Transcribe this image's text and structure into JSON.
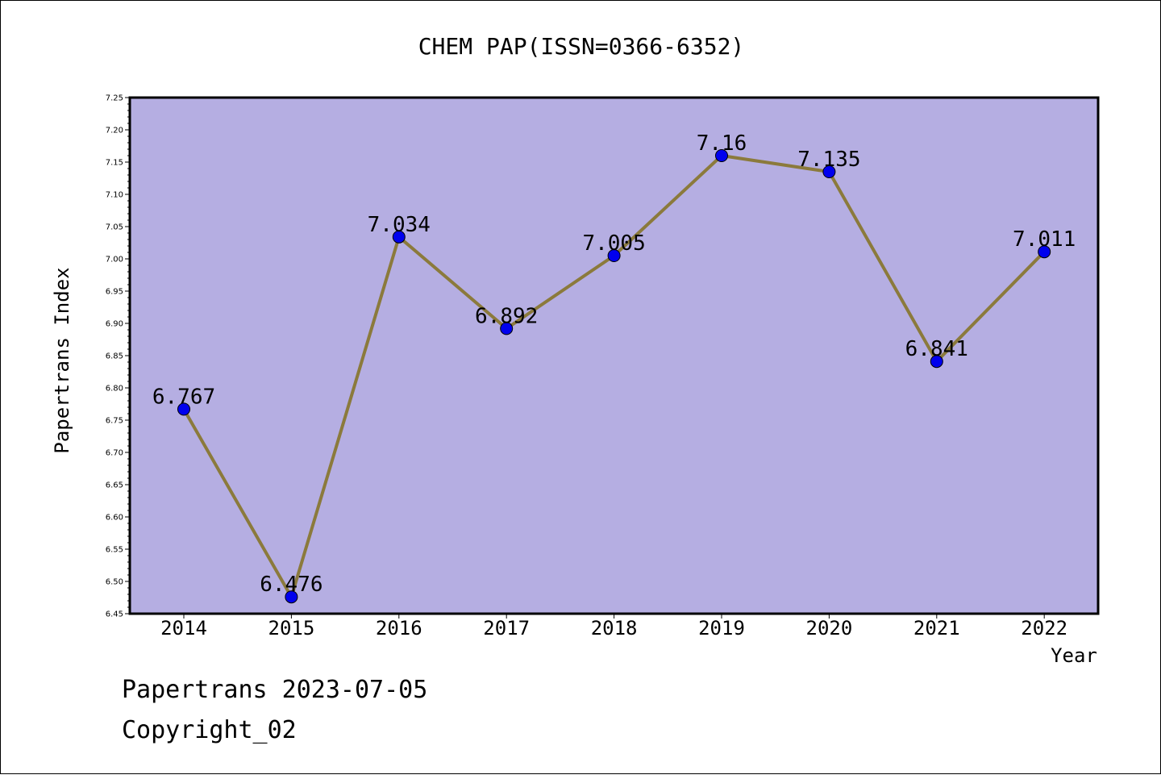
{
  "chart_data": {
    "type": "line",
    "title": "CHEM PAP(ISSN=0366-6352)",
    "xlabel": "Year",
    "ylabel": "Papertrans Index",
    "categories": [
      "2014",
      "2015",
      "2016",
      "2017",
      "2018",
      "2019",
      "2020",
      "2021",
      "2022"
    ],
    "series": [
      {
        "values": [
          6.767,
          6.476,
          7.034,
          6.892,
          7.005,
          7.16,
          7.135,
          6.841,
          7.011
        ],
        "labels": [
          "6.767",
          "6.476",
          "7.034",
          "6.892",
          "7.005",
          "7.16",
          "7.135",
          "6.841",
          "7.011"
        ]
      }
    ],
    "ylim": [
      6.45,
      7.25
    ],
    "yticks": [
      "6.45",
      "6.50",
      "6.55",
      "6.60",
      "6.65",
      "6.70",
      "6.75",
      "6.80",
      "6.85",
      "6.90",
      "6.95",
      "7.00",
      "7.05",
      "7.10",
      "7.15",
      "7.20",
      "7.25"
    ],
    "grid": false,
    "colors": {
      "plot_background": "#b5aee2",
      "line": "#8b7a3c",
      "marker": "#0000ee"
    }
  },
  "footer": {
    "line1": "Papertrans 2023-07-05",
    "line2": "Copyright_02"
  }
}
